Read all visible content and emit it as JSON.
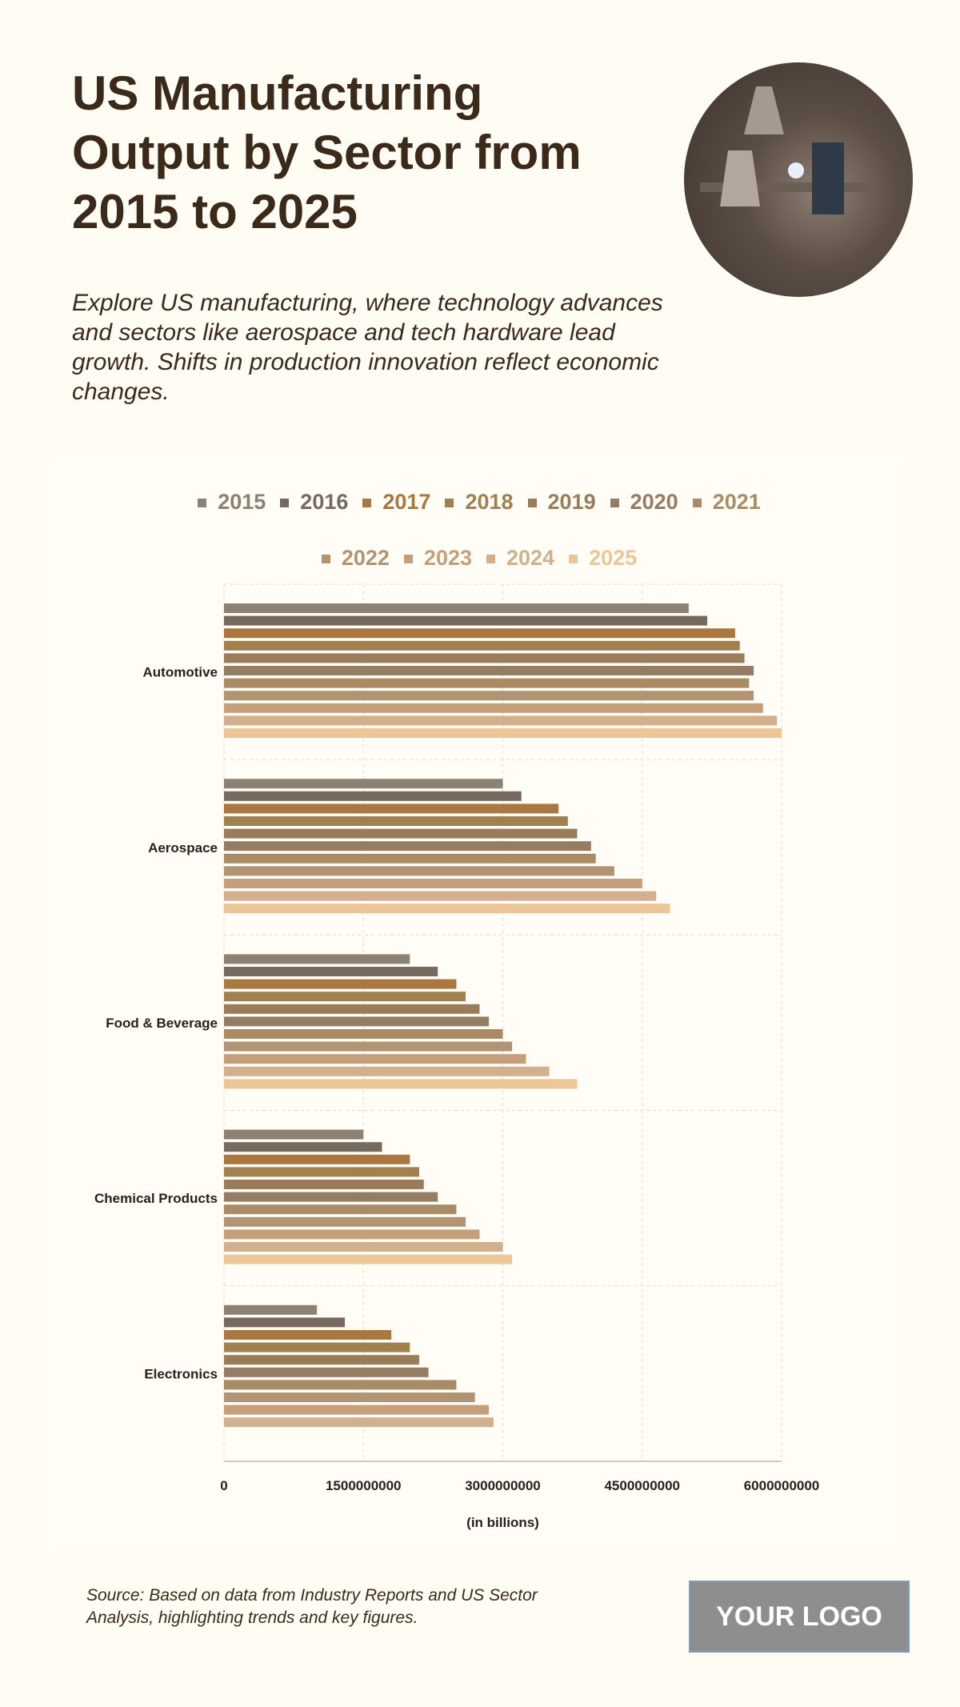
{
  "header": {
    "title": "US Manufacturing Output by Sector from 2015 to 2025",
    "subtitle": "Explore US manufacturing, where technology advances and sectors like aerospace and tech hardware lead growth. Shifts in production innovation reflect economic changes."
  },
  "footer": {
    "source": "Source: Based on data from Industry Reports and US Sector Analysis, highlighting trends and key figures.",
    "logo": "YOUR LOGO"
  },
  "chart_data": {
    "type": "bar",
    "orientation": "horizontal",
    "categories": [
      "Automotive",
      "Aerospace",
      "Food & Beverage",
      "Chemical Products",
      "Electronics"
    ],
    "xlabel": "(in billions)",
    "xlim": [
      0,
      6000000000
    ],
    "xticks": [
      "0",
      "1500000000",
      "3000000000",
      "4500000000",
      "6000000000"
    ],
    "grid": true,
    "legend": "top",
    "series": [
      {
        "name": "2015",
        "color": "#8c8173",
        "values": [
          5000000000,
          3000000000,
          2000000000,
          1500000000,
          1000000000
        ]
      },
      {
        "name": "2016",
        "color": "#756a5d",
        "values": [
          5200000000,
          3200000000,
          2300000000,
          1700000000,
          1300000000
        ]
      },
      {
        "name": "2017",
        "color": "#a9773f",
        "values": [
          5500000000,
          3600000000,
          2500000000,
          2000000000,
          1800000000
        ]
      },
      {
        "name": "2018",
        "color": "#a0804f",
        "values": [
          5550000000,
          3700000000,
          2600000000,
          2100000000,
          2000000000
        ]
      },
      {
        "name": "2019",
        "color": "#9a7c5a",
        "values": [
          5600000000,
          3800000000,
          2750000000,
          2150000000,
          2100000000
        ]
      },
      {
        "name": "2020",
        "color": "#957d63",
        "values": [
          5700000000,
          3950000000,
          2850000000,
          2300000000,
          2200000000
        ]
      },
      {
        "name": "2021",
        "color": "#a98b66",
        "values": [
          5650000000,
          4000000000,
          3000000000,
          2500000000,
          2500000000
        ]
      },
      {
        "name": "2022",
        "color": "#b19474",
        "values": [
          5700000000,
          4200000000,
          3100000000,
          2600000000,
          2700000000
        ]
      },
      {
        "name": "2023",
        "color": "#c4a07a",
        "values": [
          5800000000,
          4500000000,
          3250000000,
          2750000000,
          2850000000
        ]
      },
      {
        "name": "2024",
        "color": "#d2b08d",
        "values": [
          5950000000,
          4650000000,
          3500000000,
          3000000000,
          2900000000
        ]
      },
      {
        "name": "2025",
        "color": "#ecc697",
        "values": [
          6000000000,
          4800000000,
          3800000000,
          3100000000,
          null
        ]
      }
    ]
  }
}
